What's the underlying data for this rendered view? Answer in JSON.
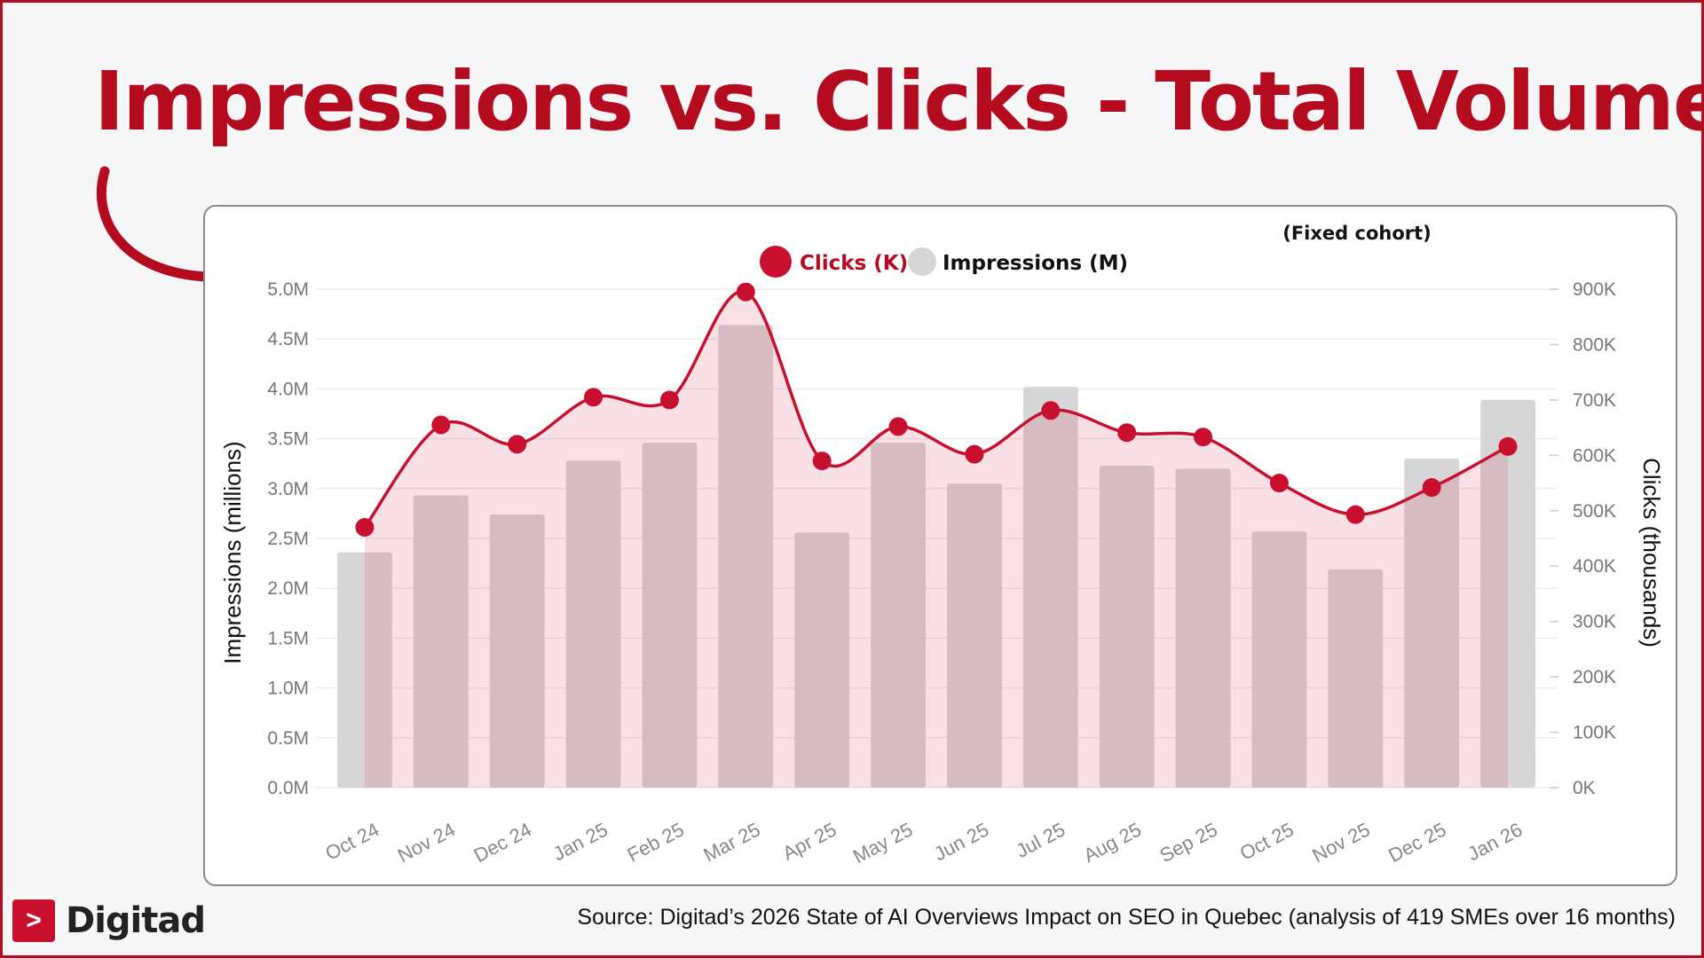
{
  "title": "Impressions vs. Clicks - Total Volume",
  "brand": {
    "name": "Digitad",
    "mark": ">"
  },
  "source": "Source: Digitad’s 2026 State of AI Overviews Impact on SEO in Quebec (analysis of 419 SMEs over 16 months)",
  "colors": {
    "accent": "#b40b1f",
    "clicks": "#c8102e",
    "impressions": "#d6d6d6",
    "area": "#f8dde1"
  },
  "chart_data": {
    "type": "bar",
    "note": "(Fixed cohort)",
    "categories": [
      "Oct 24",
      "Nov 24",
      "Dec 24",
      "Jan 25",
      "Feb 25",
      "Mar 25",
      "Apr 25",
      "May 25",
      "Jun 25",
      "Jul 25",
      "Aug 25",
      "Sep 25",
      "Oct 25",
      "Nov 25",
      "Dec 25",
      "Jan 26"
    ],
    "legend": {
      "position": "top-center",
      "items": [
        "Clicks (K)",
        "Impressions (M)"
      ]
    },
    "series": [
      {
        "name": "Impressions (M)",
        "type": "bar",
        "axis": "left",
        "values": [
          2.36,
          2.93,
          2.74,
          3.28,
          3.46,
          4.64,
          2.56,
          3.46,
          3.05,
          4.02,
          3.23,
          3.2,
          2.57,
          2.19,
          3.3,
          3.89
        ]
      },
      {
        "name": "Clicks (K)",
        "type": "line",
        "axis": "right",
        "smooth": true,
        "area": true,
        "values": [
          470,
          655,
          620,
          705,
          700,
          895,
          590,
          652,
          602,
          681,
          641,
          633,
          550,
          493,
          542,
          616
        ]
      }
    ],
    "y_left": {
      "label": "Impressions (millions)",
      "min": 0,
      "max": 5,
      "ticks": [
        "0.0M",
        "0.5M",
        "1.0M",
        "1.5M",
        "2.0M",
        "2.5M",
        "3.0M",
        "3.5M",
        "4.0M",
        "4.5M",
        "5.0M"
      ]
    },
    "y_right": {
      "label": "Clicks (thousands)",
      "min": 0,
      "max": 900,
      "ticks": [
        "0K",
        "100K",
        "200K",
        "300K",
        "400K",
        "500K",
        "600K",
        "700K",
        "800K",
        "900K"
      ]
    },
    "grid": true
  }
}
